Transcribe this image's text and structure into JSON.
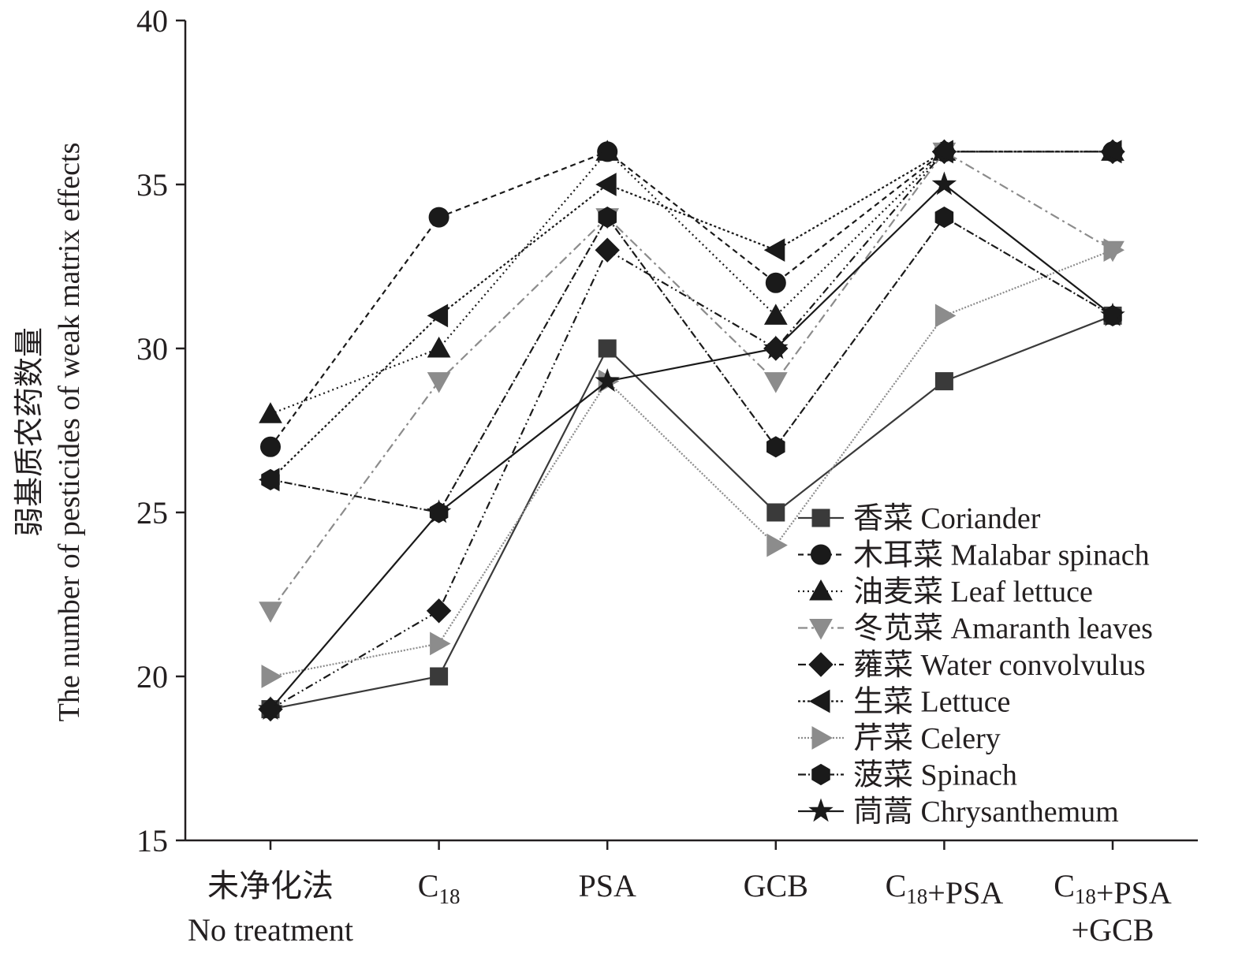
{
  "chart_data": {
    "type": "line",
    "title": "",
    "ylabel_zh": "弱基质农药数量",
    "ylabel_en": "The number of pesticides of weak matrix effects",
    "xlabel": "",
    "ylim": [
      15,
      40
    ],
    "yticks": [
      "15",
      "20",
      "25",
      "30",
      "35",
      "40"
    ],
    "categories": [
      {
        "line1": "未净化法",
        "line2": "No treatment"
      },
      {
        "line1": "C18",
        "line2": ""
      },
      {
        "line1": "PSA",
        "line2": ""
      },
      {
        "line1": "GCB",
        "line2": ""
      },
      {
        "line1": "C18+PSA",
        "line2": ""
      },
      {
        "line1": "C18+PSA",
        "line2": "+GCB"
      }
    ],
    "legend_position": "bottom-right",
    "series": [
      {
        "name": "香菜 Coriander",
        "marker": "square",
        "color": "#3a3a3a",
        "dash": "",
        "values": [
          19,
          20,
          30,
          25,
          29,
          31
        ]
      },
      {
        "name": "木耳菜 Malabar spinach",
        "marker": "circle",
        "color": "#1a1a1a",
        "dash": "7,5",
        "values": [
          27,
          34,
          36,
          32,
          36,
          36
        ]
      },
      {
        "name": "油麦菜 Leaf lettuce",
        "marker": "triangle-up",
        "color": "#1a1a1a",
        "dash": "2,4",
        "values": [
          28,
          30,
          36,
          31,
          36,
          36
        ]
      },
      {
        "name": "冬苋菜 Amaranth leaves",
        "marker": "triangle-down",
        "color": "#8c8c8c",
        "dash": "12,5,3,5",
        "values": [
          22,
          29,
          34,
          29,
          36,
          33
        ]
      },
      {
        "name": "蕹菜 Water convolvulus",
        "marker": "diamond",
        "color": "#1a1a1a",
        "dash": "10,4,2,4,2,4",
        "values": [
          19,
          22,
          33,
          30,
          36,
          36
        ]
      },
      {
        "name": "生菜 Lettuce",
        "marker": "triangle-left",
        "color": "#1a1a1a",
        "dash": "3,3",
        "values": [
          26,
          31,
          35,
          33,
          36,
          36
        ]
      },
      {
        "name": "芹菜 Celery",
        "marker": "triangle-right",
        "color": "#8c8c8c",
        "dash": "2,2",
        "values": [
          20,
          21,
          29,
          24,
          31,
          33
        ]
      },
      {
        "name": "菠菜 Spinach",
        "marker": "hexagon",
        "color": "#1a1a1a",
        "dash": "10,3,2,3",
        "values": [
          26,
          25,
          34,
          27,
          34,
          31
        ]
      },
      {
        "name": "茼蒿 Chrysanthemum",
        "marker": "star",
        "color": "#1a1a1a",
        "dash": "",
        "values": [
          19,
          25,
          29,
          30,
          35,
          31
        ]
      }
    ]
  }
}
